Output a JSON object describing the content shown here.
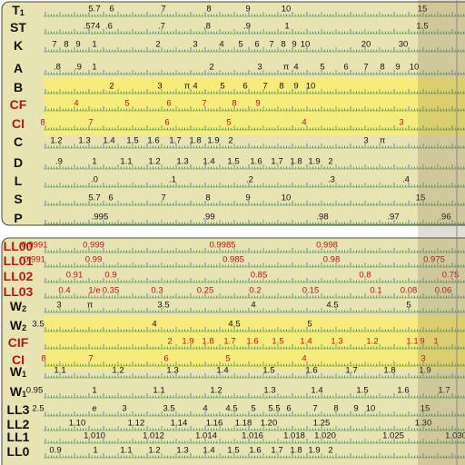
{
  "top_panel": {
    "rows": [
      {
        "name": "T",
        "sub": "1",
        "labels": [
          "5.7",
          "6",
          "7",
          "8",
          "9",
          "10",
          "15"
        ]
      },
      {
        "name": "ST",
        "labels": [
          ".574",
          ".6",
          ".7",
          ".8",
          ".9",
          "1",
          "1.5"
        ]
      },
      {
        "name": "K",
        "labels": [
          "7",
          "8",
          "9",
          "1",
          "2",
          "3",
          "4",
          "5",
          "6",
          "7",
          "8",
          "9",
          "10",
          "20",
          "30"
        ]
      },
      {
        "name": "A",
        "labels": [
          ".8",
          ".9",
          "1",
          "2",
          "3",
          "π",
          "4",
          "5",
          "6",
          "7",
          "8",
          "9",
          "10"
        ]
      },
      {
        "name": "B",
        "labels": [
          "2",
          "3",
          "π",
          "4",
          "5",
          "6",
          "7",
          "8",
          "9",
          "10"
        ]
      },
      {
        "name": "CF",
        "color": "#b01818",
        "labels": [
          "4",
          "5",
          "6",
          "7",
          "8",
          "9"
        ]
      },
      {
        "name": "CI",
        "color": "#b01818",
        "labels": [
          "8",
          "7",
          "6",
          "5",
          "4",
          "3"
        ]
      },
      {
        "name": "C",
        "labels": [
          "1.2",
          "1.3",
          "1.4",
          "1.5",
          "1.6",
          "1.7",
          "1.8",
          "1.9",
          "2",
          "3",
          "π"
        ]
      },
      {
        "name": "D",
        "labels": [
          ".9",
          "1",
          "1.1",
          "1.2",
          "1.3",
          "1.4",
          "1.5",
          "1.6",
          "1.7",
          "1.8",
          "1.9",
          "2"
        ]
      },
      {
        "name": "L",
        "labels": [
          ".0",
          ".1",
          ".2",
          ".3",
          ".4"
        ]
      },
      {
        "name": "S",
        "labels": [
          "5.7",
          "6",
          "7",
          "8",
          "9",
          "10",
          "15"
        ]
      },
      {
        "name": "P",
        "labels": [
          ".995",
          ".99",
          ".98",
          ".97",
          ".96"
        ]
      }
    ]
  },
  "bottom_panel": {
    "rows": [
      {
        "name": "LL00",
        "color": "#b01818",
        "labels": [
          "0.9991",
          "0.999",
          "0.9985",
          "0.998"
        ]
      },
      {
        "name": "LL01",
        "color": "#b01818",
        "labels": [
          "0.991",
          "0.99",
          "0.985",
          "0.98",
          "0.975"
        ]
      },
      {
        "name": "LL02",
        "color": "#b01818",
        "labels": [
          "0.91",
          "0.9",
          "0.85",
          "0.8",
          "0.75"
        ]
      },
      {
        "name": "LL03",
        "color": "#b01818",
        "labels": [
          "0.4",
          "1/e",
          "0.35",
          "0.3",
          "0.25",
          "0.2",
          "0.15",
          "0.1",
          "0.08",
          "0.06"
        ]
      },
      {
        "name": "W",
        "sub": "2",
        "labels": [
          "3",
          "π",
          "3.5",
          "4",
          "4.5",
          "5"
        ]
      },
      {
        "name": "W",
        "sub": "2",
        "labels": [
          "3.5",
          "4",
          "4.5",
          "5"
        ]
      },
      {
        "name": "CIF",
        "color": "#b01818",
        "labels": [
          "2",
          "1.9",
          "1.8",
          "1.7",
          "1.6",
          "1.5",
          "1.4",
          "1.3",
          "1.2",
          "1.1",
          "1",
          "9"
        ]
      },
      {
        "name": "CI",
        "color": "#b01818",
        "labels": [
          "8",
          "7",
          "6",
          "5",
          "4",
          "3"
        ]
      },
      {
        "name": "W",
        "sub": "1",
        "labels": [
          "1.1",
          "1.2",
          "1.3",
          "1.4",
          "1.5",
          "1.6",
          "1.7",
          "1.8",
          "1.9"
        ]
      },
      {
        "name": "W",
        "sub": "1",
        "labels": [
          "0.95",
          "1",
          "1.1",
          "1.2",
          "1.3",
          "1.4",
          "1.5",
          "1.6",
          "1.7"
        ]
      },
      {
        "name": "LL3",
        "labels": [
          "2.5",
          "e",
          "3",
          "3.5",
          "4",
          "4.5",
          "5",
          "5.5",
          "6",
          "7",
          "8",
          "9",
          "10",
          "15"
        ]
      },
      {
        "name": "LL2",
        "labels": [
          "1.10",
          "1.12",
          "1.14",
          "1.16",
          "1.18",
          "1.20",
          "1.25",
          "1.30"
        ]
      },
      {
        "name": "LL1",
        "labels": [
          "1.010",
          "1.012",
          "1.014",
          "1.016",
          "1.018",
          "1.020",
          "1.025",
          "1.030"
        ]
      },
      {
        "name": "LL0",
        "labels": [
          "0.9",
          "1",
          "1.1",
          "1.2",
          "1.3",
          "1.4",
          "1.5",
          "1.6",
          "1.7",
          "1.8",
          "1.9",
          "2"
        ]
      }
    ]
  }
}
